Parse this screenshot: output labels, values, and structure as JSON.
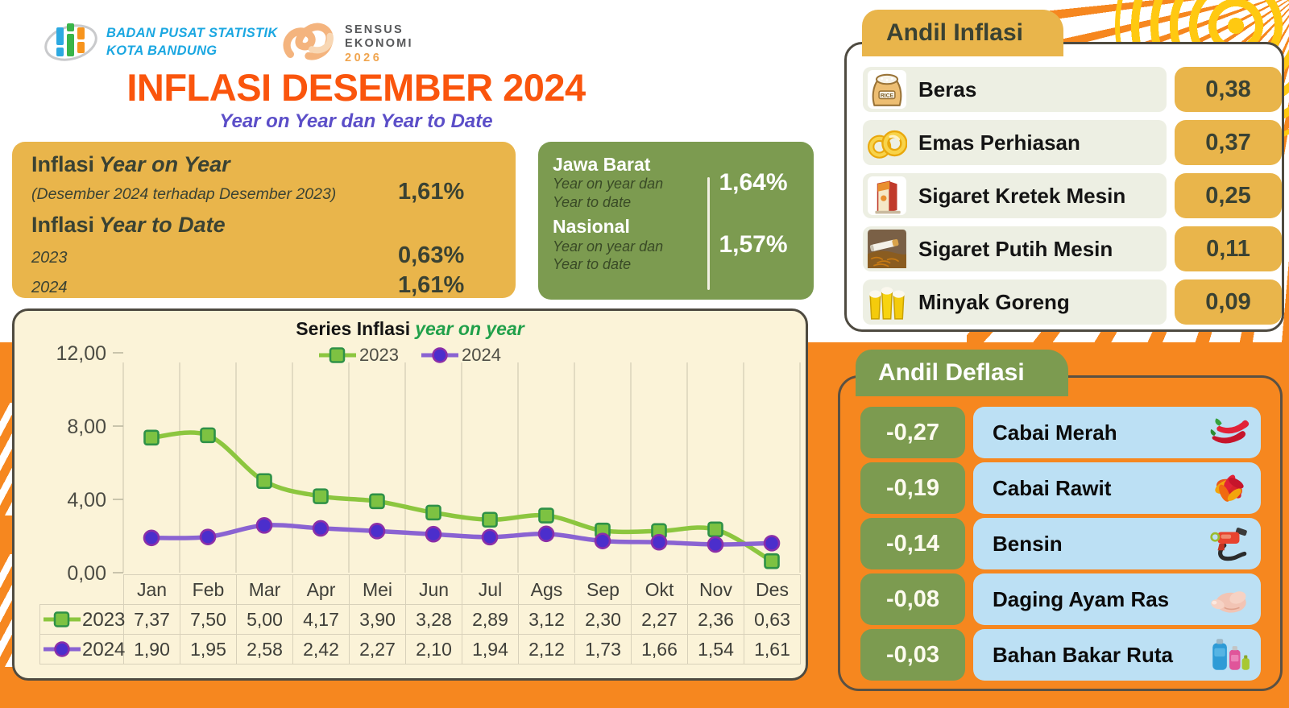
{
  "header": {
    "agency_line1": "BADAN PUSAT STATISTIK",
    "agency_line2": "KOTA BANDUNG",
    "sensus_line1": "SENSUS",
    "sensus_line2": "EKONOMI",
    "sensus_year": "2026",
    "title": "INFLASI DESEMBER 2024",
    "subtitle": "Year on Year dan Year to Date"
  },
  "yoy_box": {
    "heading_prefix": "Inflasi",
    "heading_italic": "Year on Year",
    "note": "(Desember 2024 terhadap Desember 2023)",
    "yoy_value": "1,61%",
    "ytd_heading_prefix": "Inflasi",
    "ytd_heading_italic": "Year to Date",
    "rows": [
      {
        "year": "2023",
        "value": "0,63%"
      },
      {
        "year": "2024",
        "value": "1,61%"
      }
    ]
  },
  "region_box": {
    "regions": [
      {
        "name": "Jawa Barat",
        "note_line1": "Year on year dan",
        "note_line2": "Year to date",
        "value": "1,64%"
      },
      {
        "name": "Nasional",
        "note_line1": "Year on year dan",
        "note_line2": "Year to date",
        "value": "1,57%"
      }
    ]
  },
  "chart_data": {
    "type": "line",
    "title_main": "Series Inflasi",
    "title_accent": "year on year",
    "categories": [
      "Jan",
      "Feb",
      "Mar",
      "Apr",
      "Mei",
      "Jun",
      "Jul",
      "Ags",
      "Sep",
      "Okt",
      "Nov",
      "Des"
    ],
    "series": [
      {
        "name": "2023",
        "values": [
          7.37,
          7.5,
          5.0,
          4.17,
          3.9,
          3.28,
          2.89,
          3.12,
          2.3,
          2.27,
          2.36,
          0.63
        ],
        "color": "#8CC63F",
        "marker": "square",
        "marker_fill": "#7DC242",
        "marker_stroke": "#2E9147"
      },
      {
        "name": "2024",
        "values": [
          1.9,
          1.95,
          2.58,
          2.42,
          2.27,
          2.1,
          1.94,
          2.12,
          1.73,
          1.66,
          1.54,
          1.61
        ],
        "color": "#8A63D2",
        "marker": "circle",
        "marker_fill": "#4B2ECC",
        "marker_stroke": "#8B2FA8"
      }
    ],
    "ylim": [
      0,
      12
    ],
    "yticks": [
      "0,00",
      "4,00",
      "8,00",
      "12,00"
    ],
    "grid": "vertical-only",
    "legend_position": "top-center"
  },
  "andil_inflasi": {
    "title": "Andil Inflasi",
    "items": [
      {
        "label": "Beras",
        "value": "0,38",
        "icon": "rice-sack"
      },
      {
        "label": "Emas Perhiasan",
        "value": "0,37",
        "icon": "gold-jewelry"
      },
      {
        "label": "Sigaret Kretek Mesin",
        "value": "0,25",
        "icon": "cigarette-pack"
      },
      {
        "label": "Sigaret Putih Mesin",
        "value": "0,11",
        "icon": "cigarette"
      },
      {
        "label": "Minyak Goreng",
        "value": "0,09",
        "icon": "cooking-oil"
      }
    ]
  },
  "andil_deflasi": {
    "title": "Andil Deflasi",
    "items": [
      {
        "label": "Cabai Merah",
        "value": "-0,27",
        "icon": "red-chili"
      },
      {
        "label": "Cabai Rawit",
        "value": "-0,19",
        "icon": "chili-burst"
      },
      {
        "label": "Bensin",
        "value": "-0,14",
        "icon": "fuel-pump"
      },
      {
        "label": "Daging Ayam Ras",
        "value": "-0,08",
        "icon": "chicken"
      },
      {
        "label": "Bahan Bakar Ruta",
        "value": "-0,03",
        "icon": "gas-cylinder"
      }
    ]
  },
  "colors": {
    "gold": "#E9B54B",
    "olive_green": "#7C9B50",
    "orange_background": "#F6871F",
    "chart_cream": "#FBF3D8",
    "light_blue_row": "#BCE0F4",
    "light_row": "#EDEFE3",
    "title_orange": "#FA550D",
    "subtitle_purple": "#5B4EC8",
    "dark_text": "#3A4233",
    "series_2023": "#8CC63F",
    "series_2024": "#8A63D2"
  }
}
